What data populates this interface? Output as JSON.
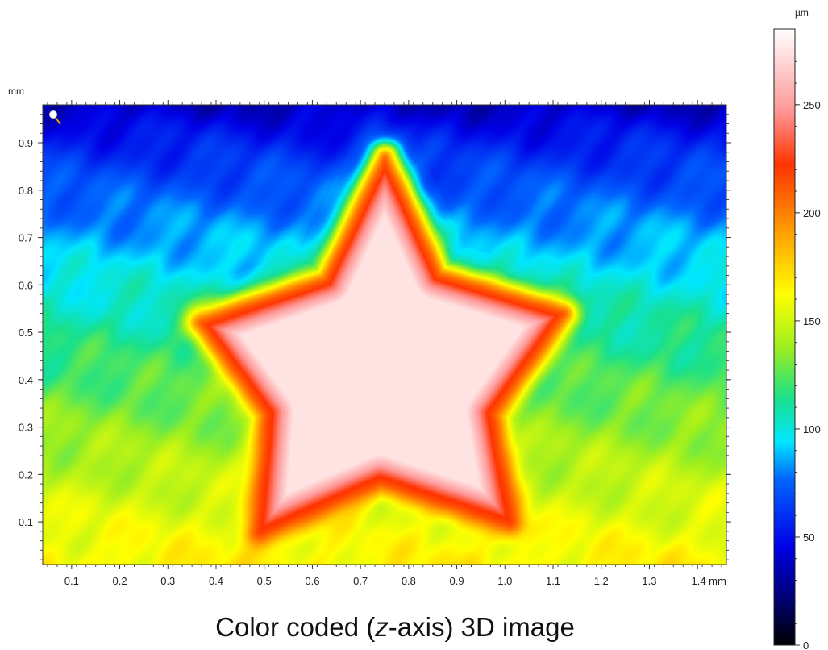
{
  "chart_data": {
    "type": "heatmap",
    "title": "",
    "caption": {
      "prefix": "Color coded (",
      "italic": "z",
      "suffix": "-axis) 3D image"
    },
    "x_axis": {
      "unit": "mm",
      "range": [
        0.04,
        1.46
      ],
      "ticks": [
        0.1,
        0.2,
        0.3,
        0.4,
        0.5,
        0.6,
        0.7,
        0.8,
        0.9,
        1.0,
        1.1,
        1.2,
        1.3,
        1.4
      ],
      "tick_labels": [
        "0.1",
        "0.2",
        "0.3",
        "0.4",
        "0.5",
        "0.6",
        "0.7",
        "0.8",
        "0.9",
        "1.0",
        "1.1",
        "1.2",
        "1.3",
        "1.4 mm"
      ]
    },
    "y_axis": {
      "unit": "mm",
      "range": [
        0.01,
        0.98
      ],
      "ticks": [
        0.1,
        0.2,
        0.3,
        0.4,
        0.5,
        0.6,
        0.7,
        0.8,
        0.9
      ],
      "tick_labels": [
        "0.1",
        "0.2",
        "0.3",
        "0.4",
        "0.5",
        "0.6",
        "0.7",
        "0.8",
        "0.9"
      ]
    },
    "colorbar": {
      "unit": "µm",
      "range": [
        0,
        285
      ],
      "ticks": [
        0,
        50,
        100,
        150,
        200,
        250
      ],
      "tick_labels": [
        "0",
        "50",
        "100",
        "150",
        "200",
        "250"
      ],
      "colors": [
        "#000000",
        "#00007a",
        "#0000e6",
        "#0066ff",
        "#00e6ff",
        "#19e08c",
        "#99ee22",
        "#ffff00",
        "#ff8c00",
        "#ff3300",
        "#ff9999",
        "#ffffff"
      ],
      "color_positions": [
        0,
        0.08,
        0.16,
        0.27,
        0.33,
        0.4,
        0.48,
        0.57,
        0.69,
        0.78,
        0.87,
        1.0
      ]
    },
    "surface": {
      "description_shape": "star",
      "background_top_um": 35,
      "background_bottom_um": 165,
      "star_plateau_um": 275,
      "star_outline_mm": [
        [
          0.75,
          0.87
        ],
        [
          0.86,
          0.62
        ],
        [
          1.12,
          0.54
        ],
        [
          0.97,
          0.33
        ],
        [
          1.01,
          0.1
        ],
        [
          0.74,
          0.19
        ],
        [
          0.49,
          0.08
        ],
        [
          0.51,
          0.33
        ],
        [
          0.37,
          0.52
        ],
        [
          0.63,
          0.61
        ]
      ]
    }
  }
}
